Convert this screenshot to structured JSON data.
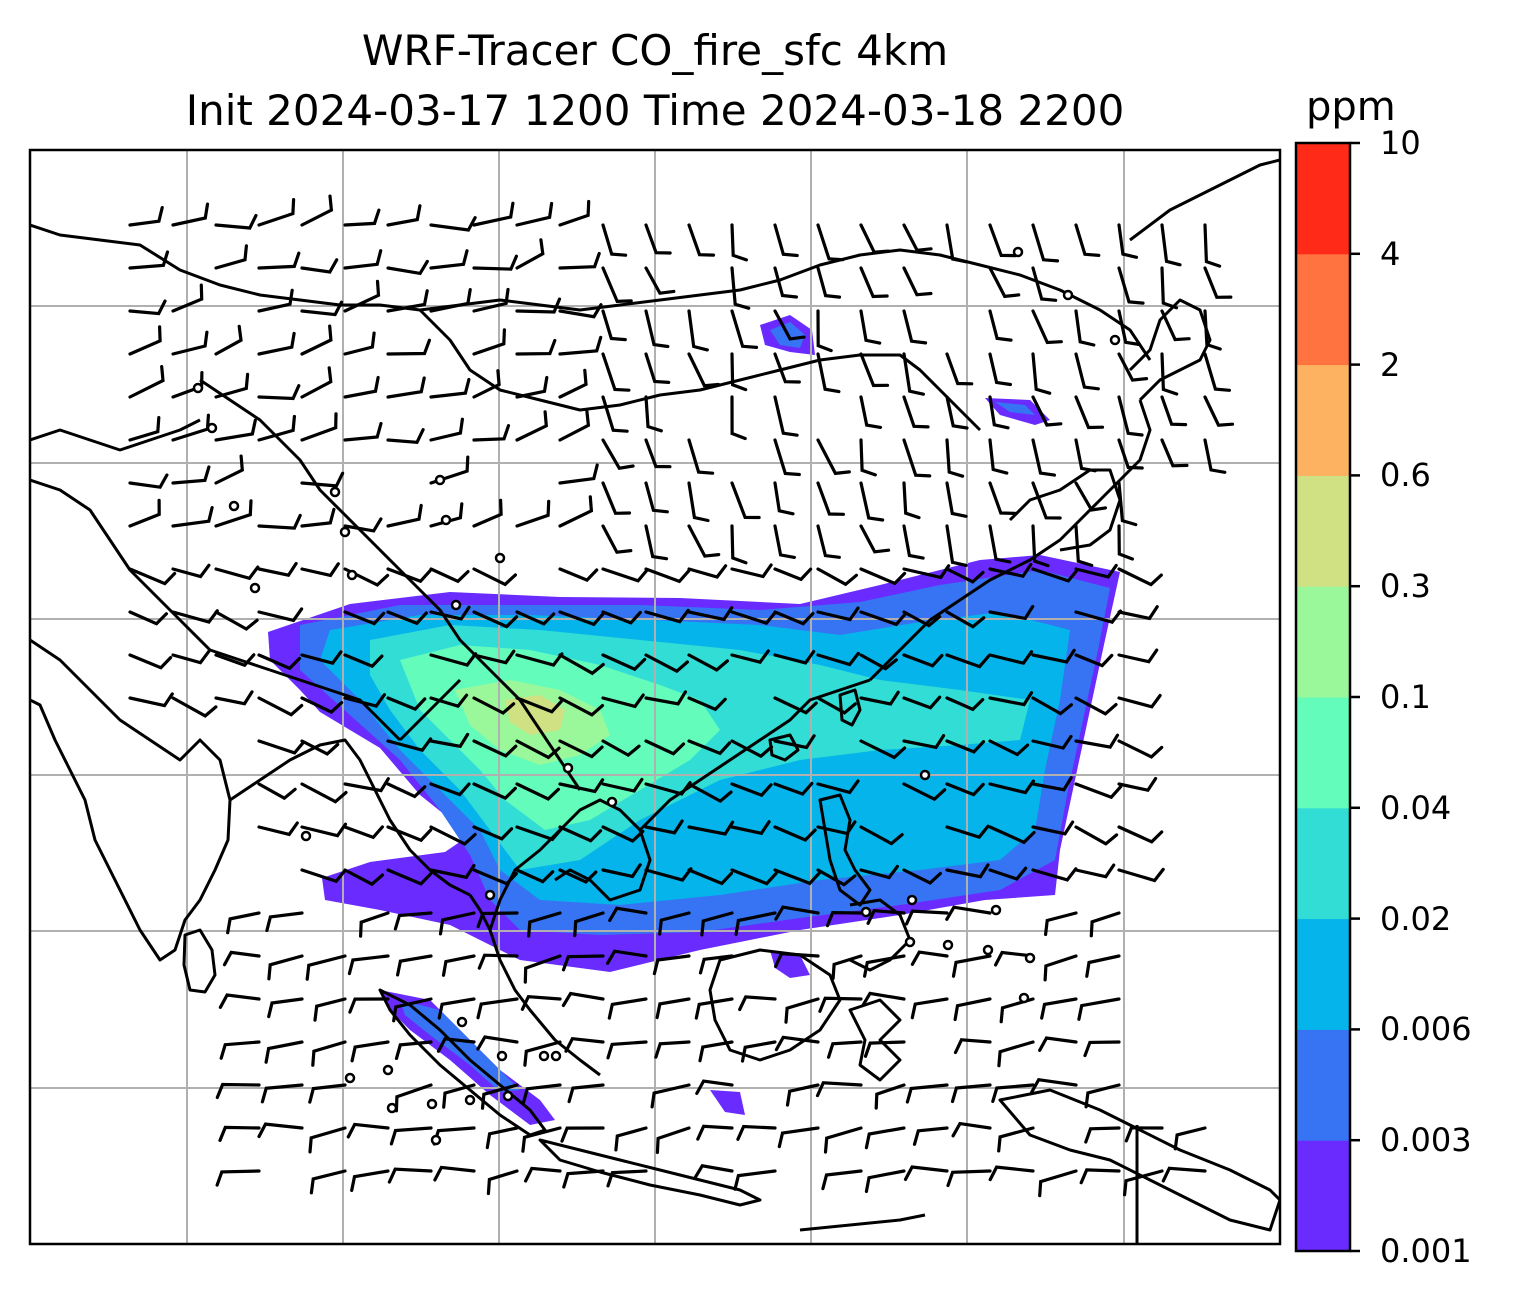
{
  "chart_data": {
    "type": "heatmap",
    "title": "WRF-Tracer CO_fire_sfc 4km",
    "subtitle": "Init 2024-03-17 1200 Time 2024-03-18 2200",
    "colorbar": {
      "unit": "ppm",
      "levels": [
        "0.001",
        "0.003",
        "0.006",
        "0.02",
        "0.04",
        "0.1",
        "0.3",
        "0.6",
        "2",
        "4",
        "10"
      ],
      "colors": [
        "#6a2bff",
        "#3674f4",
        "#05b4ea",
        "#32ddd6",
        "#64fcbb",
        "#9af89a",
        "#d0e184",
        "#fdb262",
        "#ff7340",
        "#ff2a17"
      ]
    },
    "grid": true,
    "overlays": [
      "coastlines",
      "country borders",
      "wind barbs"
    ]
  }
}
